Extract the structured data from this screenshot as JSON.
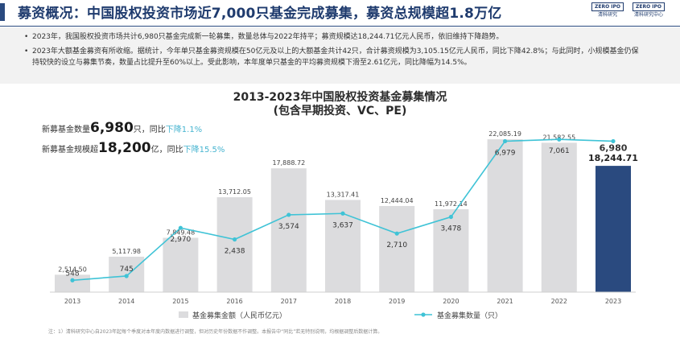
{
  "header": {
    "title": "募资概况：中国股权投资市场近7,000只基金完成募集，募资总规模超1.8万亿",
    "logos": [
      {
        "mark": "ZERO IPO",
        "text": "清科研究"
      },
      {
        "mark": "ZERO IPO",
        "text": "清科研究中心"
      }
    ]
  },
  "bullets": [
    "2023年，我国股权投资市场共计6,980只基金完成新一轮募集，数量总体与2022年持平；募资规模达18,244.71亿元人民币，依旧维持下降趋势。",
    "2023年大额基金募资有所收缩。据统计，今年单只基金募资规模在50亿元及以上的大额基金共计42只，合计募资规模为3,105.15亿元人民币，同比下降42.8%；与此同时，小规模基金仍保持较快的设立与募集节奏，数量占比提升至60%以上。受此影响，本年度单只基金的平均募资规模下滑至2.61亿元，同比降幅为14.5%。"
  ],
  "stats": {
    "count": {
      "label": "新募基金数量",
      "value": "6,980",
      "unit": "只，",
      "yoy": "同比",
      "change": "下降1.1%"
    },
    "size": {
      "label": "新募基金规模超",
      "value": "18,200",
      "unit": "亿，",
      "yoy": "同比",
      "change": "下降15.5%"
    }
  },
  "footnote": "注：1）清科研究中心自2023年起每个季度对本年度内数据进行调整，但对历史年份数据不作调整。本报告中“同比”若无特别说明，均根据调整后数据计算。",
  "chart_data": {
    "type": "bar",
    "title": "2013-2023年中国股权投资基金募集情况",
    "subtitle": "(包含早期投资、VC、PE)",
    "categories": [
      "2013",
      "2014",
      "2015",
      "2016",
      "2017",
      "2018",
      "2019",
      "2020",
      "2021",
      "2022",
      "2023"
    ],
    "series": [
      {
        "name": "基金募集金额（人民币亿元）",
        "type": "bar",
        "axis": "left",
        "values": [
          2514.5,
          5117.98,
          7849.48,
          13712.05,
          17888.72,
          13317.41,
          12444.04,
          11972.14,
          22085.19,
          21582.55,
          18244.71
        ],
        "labels": [
          "2,514.50",
          "5,117.98",
          "7,849.48",
          "13,712.05",
          "17,888.72",
          "13,317.41",
          "12,444.04",
          "11,972.14",
          "22,085.19",
          "21,582.55",
          "18,244.71"
        ]
      },
      {
        "name": "基金募集数量（只）",
        "type": "line",
        "axis": "right",
        "values": [
          548,
          745,
          2970,
          2438,
          3574,
          3637,
          2710,
          3478,
          6979,
          7061,
          6980
        ],
        "labels": [
          "548",
          "745",
          "2,970",
          "2,438",
          "3,574",
          "3,637",
          "2,710",
          "3,478",
          "6,979",
          "7,061",
          "6,980"
        ]
      }
    ],
    "ylim_left": [
      0,
      25000
    ],
    "ylim_right": [
      0,
      8000
    ],
    "colors": {
      "bar": "#dcdcde",
      "bar_last": "#2a4a7f",
      "line": "#3fc3d6"
    },
    "legend_position": "bottom",
    "grid": false
  }
}
